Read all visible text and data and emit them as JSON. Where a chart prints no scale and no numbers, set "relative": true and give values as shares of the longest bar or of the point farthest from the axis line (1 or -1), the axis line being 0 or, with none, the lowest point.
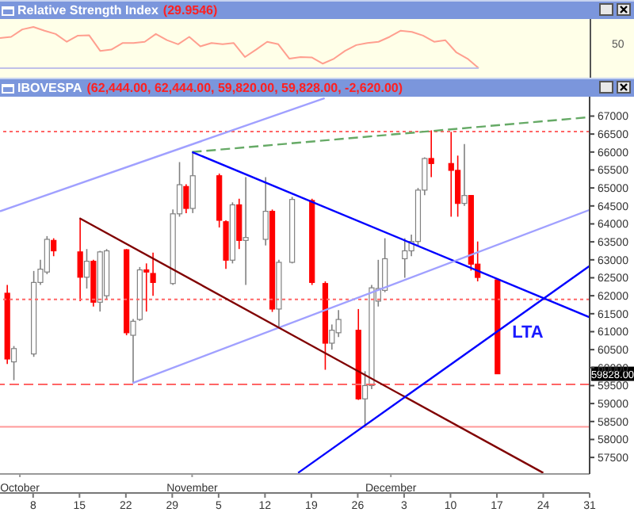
{
  "chart_data": [
    {
      "type": "line",
      "title": "Relative Strength Index",
      "subtitle": "(29.9546)",
      "relative": true,
      "annotations": [
        "50"
      ],
      "categories": [
        null,
        null,
        null,
        null,
        null,
        null,
        null,
        null,
        null,
        null,
        null,
        null,
        null,
        null,
        null,
        null,
        null,
        null,
        null,
        null,
        null,
        null,
        null,
        null,
        null,
        null,
        null,
        null,
        null,
        null,
        null,
        null,
        null,
        null,
        null,
        null,
        null,
        null,
        null,
        null,
        null,
        null,
        null,
        null
      ],
      "series": [
        {
          "color": "#ff9f8f",
          "values": [
            0.73,
            0.76,
            0.94,
            1,
            0.91,
            0.83,
            0.64,
            0.79,
            0.8,
            0.42,
            0.45,
            0.61,
            0.61,
            0.64,
            0.83,
            0.68,
            0.58,
            0.76,
            0.53,
            0.61,
            0.58,
            0.61,
            0.27,
            0.45,
            0.64,
            0.58,
            0.23,
            0.27,
            0.26,
            0.11,
            0.23,
            0.42,
            0.56,
            0.61,
            0.64,
            0.76,
            0.91,
            0.88,
            0.79,
            0.64,
            0.68,
            0.38,
            0.23,
            0
          ]
        }
      ]
    },
    {
      "type": "candlestick",
      "title": "IBOVESPA",
      "subtitle": "(62,444.00, 62,444.00, 59,820.00, 59,828.00, -2,620.00)",
      "x": [
        "--10-04",
        "--10-05",
        "--10-08",
        "--10-09",
        "--10-10",
        "--10-11",
        "--10-15",
        "--10-16",
        "--10-17",
        "--10-18",
        "--10-19",
        "--10-22",
        "--10-23",
        "--10-24",
        "--10-25",
        "--10-26",
        "--10-29",
        "--10-30",
        "--10-31",
        "--11-01",
        "--11-05",
        "--11-06",
        "--11-07",
        "--11-08",
        "--11-09",
        "--11-12",
        "--11-13",
        "--11-14",
        "--11-16",
        "--11-19",
        "--11-21",
        "--11-22",
        "--11-23",
        "--11-26",
        "--11-27",
        "--11-28",
        "--11-29",
        "--11-30",
        "--12-03",
        "--12-04",
        "--12-05",
        "--12-06",
        "--12-07",
        "--12-10",
        "--12-11",
        "--12-12",
        "--12-13",
        "--12-14",
        "--12-17"
      ],
      "ohlc": [
        [
          62070,
          62300,
          60100,
          60240
        ],
        [
          60160,
          60600,
          59650,
          60530
        ],
        [
          60380,
          62690,
          60300,
          62370
        ],
        [
          62370,
          63000,
          62300,
          62740
        ],
        [
          62660,
          63660,
          62600,
          63570
        ],
        [
          63540,
          63600,
          63100,
          63250
        ],
        [
          63220,
          64130,
          61850,
          62515
        ],
        [
          62515,
          63300,
          62200,
          62960
        ],
        [
          62960,
          63000,
          61700,
          61820
        ],
        [
          61820,
          63250,
          61560,
          63220
        ],
        [
          62000,
          63300,
          61900,
          63250
        ],
        [
          63280,
          63300,
          60900,
          60970
        ],
        [
          60900,
          61350,
          59570,
          61290
        ],
        [
          61340,
          62800,
          61300,
          62720
        ],
        [
          62720,
          62900,
          61560,
          62660
        ],
        [
          62620,
          63200,
          62000,
          62370
        ],
        [
          62340,
          64400,
          62300,
          64280
        ],
        [
          64280,
          65720,
          64200,
          65090
        ],
        [
          65040,
          65100,
          64300,
          64430
        ],
        [
          64430,
          65970,
          64300,
          65340
        ],
        [
          65340,
          65400,
          63900,
          64100
        ],
        [
          64060,
          64100,
          62750,
          62990
        ],
        [
          62990,
          64600,
          62900,
          64530
        ],
        [
          64530,
          64700,
          63300,
          63540
        ],
        [
          63540,
          65300,
          62300,
          63620
        ],
        [
          63570,
          65300,
          63400,
          64350
        ],
        [
          64350,
          64400,
          61550,
          61630
        ],
        [
          61630,
          63000,
          61120,
          62930
        ],
        [
          62930,
          64750,
          62900,
          64680
        ],
        [
          64650,
          64700,
          62300,
          62370
        ],
        [
          62340,
          62400,
          59940,
          60680
        ],
        [
          60680,
          61200,
          60500,
          61040
        ],
        [
          60970,
          61600,
          60850,
          61340
        ],
        [
          61040,
          61630,
          59100,
          59130
        ],
        [
          59130,
          59900,
          58330,
          59500
        ],
        [
          59500,
          62300,
          59400,
          62220
        ],
        [
          61850,
          63000,
          61700,
          62200
        ],
        [
          62150,
          63600,
          62100,
          63030
        ],
        [
          63030,
          63600,
          62500,
          63250
        ],
        [
          63250,
          63700,
          63100,
          63510
        ],
        [
          63510,
          65000,
          63400,
          64940
        ],
        [
          64940,
          65850,
          64800,
          65820
        ],
        [
          65820,
          66600,
          65300,
          65680
        ],
        [
          65680,
          66560,
          64200,
          65490
        ],
        [
          65490,
          65900,
          64200,
          64570
        ],
        [
          64570,
          66220,
          64500,
          64790
        ],
        [
          64790,
          64800,
          62700,
          62880
        ],
        [
          62880,
          63510,
          62400,
          62510
        ],
        [
          62444,
          62444,
          59820,
          59828
        ]
      ],
      "colors": [
        "#ff0000",
        "#808080",
        "#808080",
        "#808080",
        "#808080",
        "#ff0000",
        "#ff0000",
        "#808080",
        "#ff0000",
        "#808080",
        "#808080",
        "#ff0000",
        "#808080",
        "#808080",
        "#ff0000",
        "#ff0000",
        "#808080",
        "#808080",
        "#ff0000",
        "#808080",
        "#ff0000",
        "#ff0000",
        "#808080",
        "#ff0000",
        "#808080",
        "#808080",
        "#ff0000",
        "#808080",
        "#808080",
        "#ff0000",
        "#ff0000",
        "#808080",
        "#808080",
        "#ff0000",
        "#808080",
        "#808080",
        "#808080",
        "#808080",
        "#808080",
        "#808080",
        "#808080",
        "#808080",
        "#ff0000",
        "#ff0000",
        "#ff0000",
        "#808080",
        "#ff0000",
        "#ff0000",
        "#ff0000"
      ],
      "series": [
        {
          "type": "line",
          "color": "#a0a0ff",
          "x": [
            "--10-03",
            "--11-21"
          ],
          "values": [
            64350,
            67500
          ]
        },
        {
          "type": "line",
          "color": "#66aa66",
          "line_style": "dashed",
          "x": [
            "--11-01",
            "--12-31"
          ],
          "values": [
            66000,
            66970
          ]
        },
        {
          "type": "line",
          "color": "#0000ff",
          "x": [
            "--11-01",
            "--12-31"
          ],
          "values": [
            66000,
            61400
          ]
        },
        {
          "type": "line",
          "color": "#a0a0ff",
          "x": [
            "--10-23",
            "--12-31"
          ],
          "values": [
            59570,
            64390
          ]
        },
        {
          "type": "line",
          "color": "#800000",
          "x": [
            "--10-15",
            "--12-24"
          ],
          "values": [
            64160,
            57070
          ]
        },
        {
          "type": "line",
          "color": "#0000ff",
          "x": [
            "--11-17",
            "--12-31"
          ],
          "values": [
            57070,
            62830
          ]
        }
      ],
      "ref_lines": [
        {
          "axis": "y",
          "value": 66570,
          "color": "#ff6666",
          "line_style": "dotted"
        },
        {
          "axis": "y",
          "value": 61900,
          "color": "#ff6666",
          "line_style": "dotted"
        },
        {
          "axis": "y",
          "value": 59530,
          "color": "#ff6666",
          "line_style": "dashed"
        },
        {
          "axis": "y",
          "value": 58350,
          "color": "#ff9999",
          "line_style": "solid"
        }
      ],
      "annotations": [
        "LTA",
        {
          "text": "59828.00",
          "y": 59828
        }
      ],
      "xlim": [
        "--10-03",
        "--12-31"
      ],
      "xticks": [
        {
          "value": "--10-08",
          "label": "8"
        },
        {
          "value": "--10-15",
          "label": "15"
        },
        {
          "value": "--10-22",
          "label": "22"
        },
        {
          "value": "--10-29",
          "label": "29"
        },
        {
          "value": "--11-05",
          "label": "5"
        },
        {
          "value": "--11-12",
          "label": "12"
        },
        {
          "value": "--11-19",
          "label": "19"
        },
        {
          "value": "--11-26",
          "label": "26"
        },
        {
          "value": "--12-03",
          "label": "3"
        },
        {
          "value": "--12-10",
          "label": "10"
        },
        {
          "value": "--12-17",
          "label": "17"
        },
        {
          "value": "--12-24",
          "label": "24"
        },
        {
          "value": "--12-31",
          "label": "31"
        }
      ],
      "x2lim": [
        "--10-03",
        "--12-31"
      ],
      "x2ticks": [
        {
          "value": "--10-06",
          "label": "October"
        },
        {
          "value": "--11-01",
          "label": "November"
        },
        {
          "value": "--12-01",
          "label": "December"
        }
      ],
      "ylim": [
        57040,
        67540
      ],
      "yticks": [
        57500,
        58000,
        58500,
        59000,
        59500,
        60000,
        60500,
        61000,
        61500,
        62000,
        62500,
        63000,
        63500,
        64000,
        64500,
        65000,
        65500,
        66000,
        66500,
        67000
      ]
    }
  ]
}
